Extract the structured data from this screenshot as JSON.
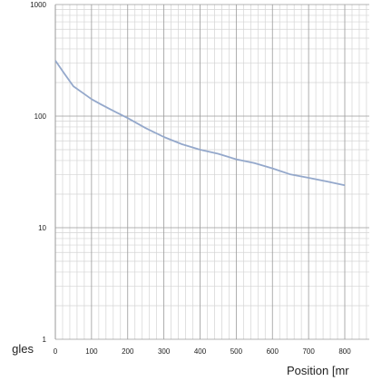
{
  "chart_data": {
    "type": "line",
    "xlabel": "Position [mr",
    "ylabel": "gles",
    "y_scale": "log",
    "grid": true,
    "legend": "none",
    "xlim": [
      0,
      800
    ],
    "ylim": [
      1,
      1000
    ],
    "x_ticks": [
      "0",
      "100",
      "200",
      "300",
      "400",
      "500",
      "600",
      "700",
      "800"
    ],
    "y_ticks": [
      "1",
      "10",
      "100",
      "1000"
    ],
    "series": [
      {
        "color": "#94a8cb",
        "x": [
          0,
          25,
          50,
          75,
          100,
          125,
          150,
          200,
          250,
          300,
          350,
          400,
          450,
          500,
          550,
          600,
          650,
          700,
          750,
          800
        ],
        "y": [
          315,
          240,
          185,
          162,
          142,
          128,
          116,
          96,
          78,
          65,
          56,
          50,
          46,
          41,
          38,
          34,
          30,
          28,
          26,
          24
        ]
      }
    ]
  }
}
